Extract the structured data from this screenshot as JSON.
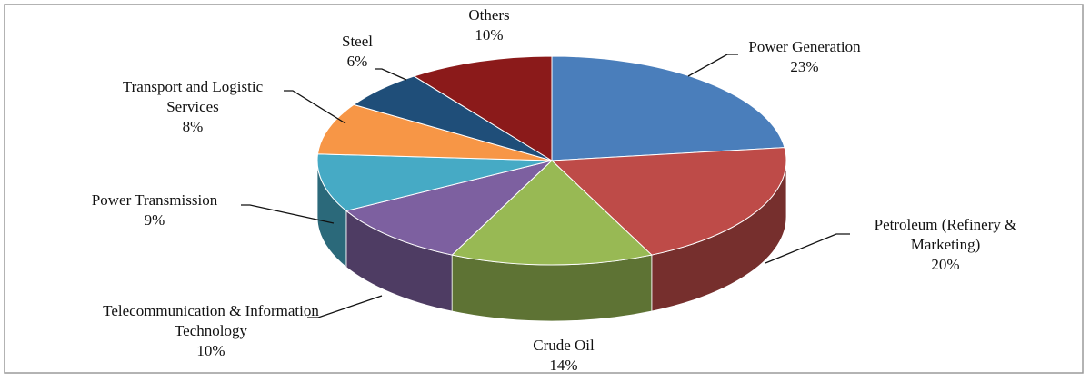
{
  "chart_data": {
    "type": "pie",
    "categories": [
      "Power Generation",
      "Petroleum (Refinery & Marketing)",
      "Crude Oil",
      "Telecommunication & Information Technology",
      "Power Transmission",
      "Transport and Logistic Services",
      "Steel",
      "Others"
    ],
    "values": [
      23,
      20,
      14,
      10,
      9,
      8,
      6,
      10
    ],
    "value_labels": [
      "23%",
      "20%",
      "14%",
      "10%",
      "9%",
      "8%",
      "6%",
      "10%"
    ],
    "colors": [
      "#4a7ebb",
      "#be4b48",
      "#98b954",
      "#7d60a0",
      "#46aac5",
      "#f79646",
      "#1f4e79",
      "#8b1a1a"
    ]
  }
}
